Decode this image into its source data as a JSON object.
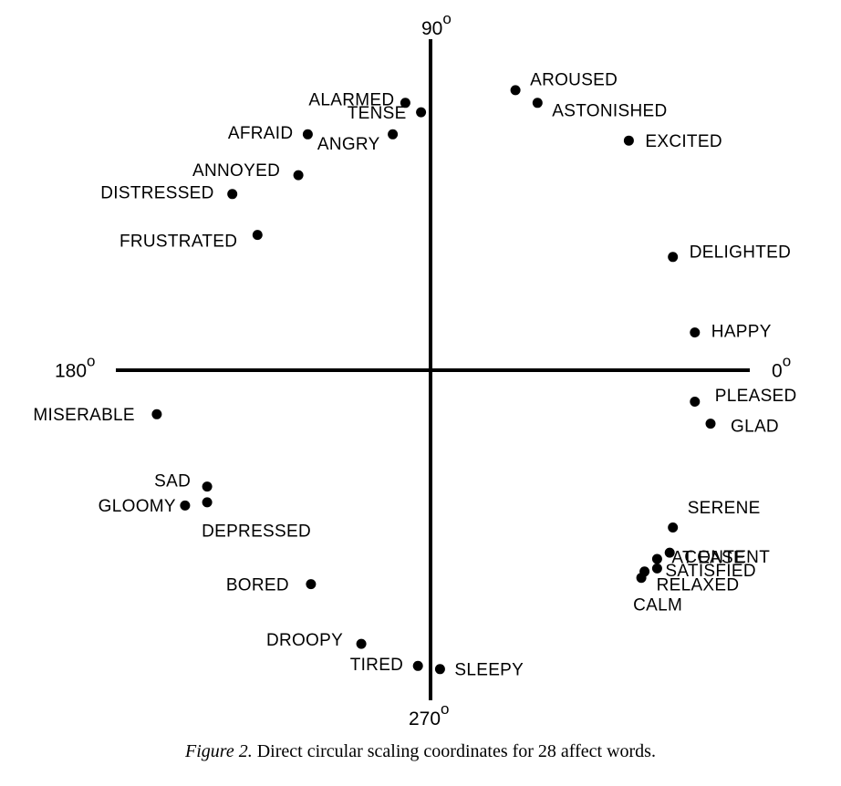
{
  "chart_data": {
    "type": "scatter",
    "title": "",
    "xlabel": "",
    "ylabel": "",
    "axis_labels": {
      "right": "0",
      "top": "90",
      "left": "180",
      "bottom": "270",
      "degree_symbol": "o"
    },
    "xlim": [
      -1.0,
      1.0
    ],
    "ylim": [
      -1.0,
      1.0
    ],
    "grid": false,
    "points": [
      {
        "label": "AROUSED",
        "x": 0.27,
        "y": 0.89
      },
      {
        "label": "ASTONISHED",
        "x": 0.34,
        "y": 0.85
      },
      {
        "label": "EXCITED",
        "x": 0.63,
        "y": 0.73
      },
      {
        "label": "DELIGHTED",
        "x": 0.77,
        "y": 0.36
      },
      {
        "label": "HAPPY",
        "x": 0.84,
        "y": 0.12
      },
      {
        "label": "PLEASED",
        "x": 0.84,
        "y": -0.1
      },
      {
        "label": "GLAD",
        "x": 0.89,
        "y": -0.17
      },
      {
        "label": "SERENE",
        "x": 0.77,
        "y": -0.5
      },
      {
        "label": "CONTENT",
        "x": 0.76,
        "y": -0.58
      },
      {
        "label": "AT EASE",
        "x": 0.72,
        "y": -0.6
      },
      {
        "label": "SATISFIED",
        "x": 0.72,
        "y": -0.63
      },
      {
        "label": "RELAXED",
        "x": 0.68,
        "y": -0.64
      },
      {
        "label": "CALM",
        "x": 0.67,
        "y": -0.66
      },
      {
        "label": "SLEEPY",
        "x": 0.03,
        "y": -0.95
      },
      {
        "label": "TIRED",
        "x": -0.04,
        "y": -0.94
      },
      {
        "label": "DROOPY",
        "x": -0.22,
        "y": -0.87
      },
      {
        "label": "BORED",
        "x": -0.38,
        "y": -0.68
      },
      {
        "label": "DEPRESSED",
        "x": -0.71,
        "y": -0.42
      },
      {
        "label": "GLOOMY",
        "x": -0.78,
        "y": -0.43
      },
      {
        "label": "SAD",
        "x": -0.71,
        "y": -0.37
      },
      {
        "label": "MISERABLE",
        "x": -0.87,
        "y": -0.14
      },
      {
        "label": "FRUSTRATED",
        "x": -0.55,
        "y": 0.43
      },
      {
        "label": "DISTRESSED",
        "x": -0.63,
        "y": 0.56
      },
      {
        "label": "ANNOYED",
        "x": -0.42,
        "y": 0.62
      },
      {
        "label": "AFRAID",
        "x": -0.39,
        "y": 0.75
      },
      {
        "label": "ANGRY",
        "x": -0.12,
        "y": 0.75
      },
      {
        "label": "TENSE",
        "x": -0.03,
        "y": 0.82
      },
      {
        "label": "ALARMED",
        "x": -0.08,
        "y": 0.85
      }
    ]
  },
  "caption": {
    "figure_label": "Figure 2.",
    "text": " Direct circular scaling coordinates for 28 affect words."
  }
}
